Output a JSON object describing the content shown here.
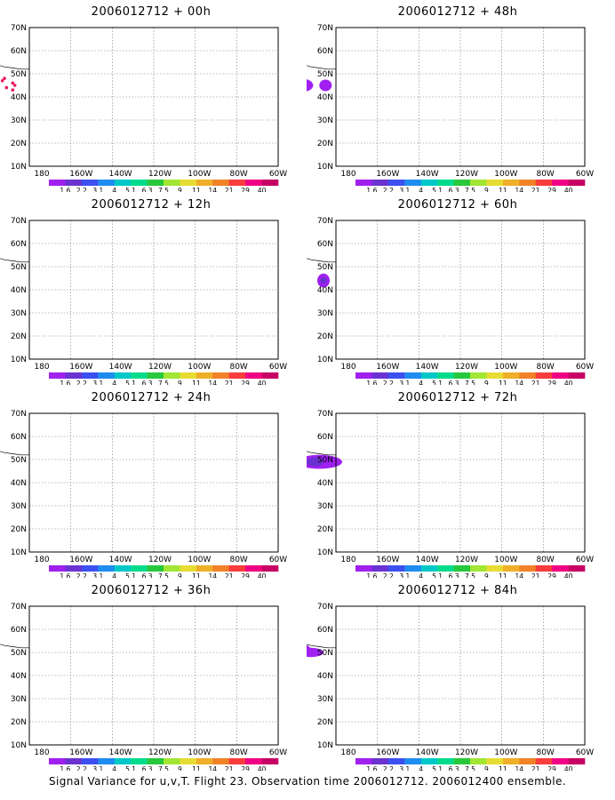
{
  "panels": [
    {
      "title": "2006012712 + 00h"
    },
    {
      "title": "2006012712 + 48h"
    },
    {
      "title": "2006012712 + 12h"
    },
    {
      "title": "2006012712 + 60h"
    },
    {
      "title": "2006012712 + 24h"
    },
    {
      "title": "2006012712 + 72h"
    },
    {
      "title": "2006012712 + 36h"
    },
    {
      "title": "2006012712 + 84h"
    }
  ],
  "lat_labels": [
    "70N",
    "60N",
    "50N",
    "40N",
    "30N",
    "20N",
    "10N"
  ],
  "lon_labels": [
    "180",
    "160W",
    "140W",
    "120W",
    "100W",
    "80W",
    "60W"
  ],
  "colorbar": {
    "labels": [
      "1.6",
      "2.2",
      "3.1",
      "4",
      "5.1",
      "6.3",
      "7.5",
      "9",
      "11",
      "14",
      "21",
      "29",
      "40"
    ],
    "colors": [
      "#a020f0",
      "#6a32d0",
      "#3c50f0",
      "#1e8cf0",
      "#00c8c8",
      "#00dc8c",
      "#28c83c",
      "#a0e632",
      "#e6dc32",
      "#f0af28",
      "#f08228",
      "#fa3c3c",
      "#f00082",
      "#c80064"
    ]
  },
  "footer": "Signal Variance for u,v,T. Flight 23. Observation time 2006012712. 2006012400 ensemble."
}
